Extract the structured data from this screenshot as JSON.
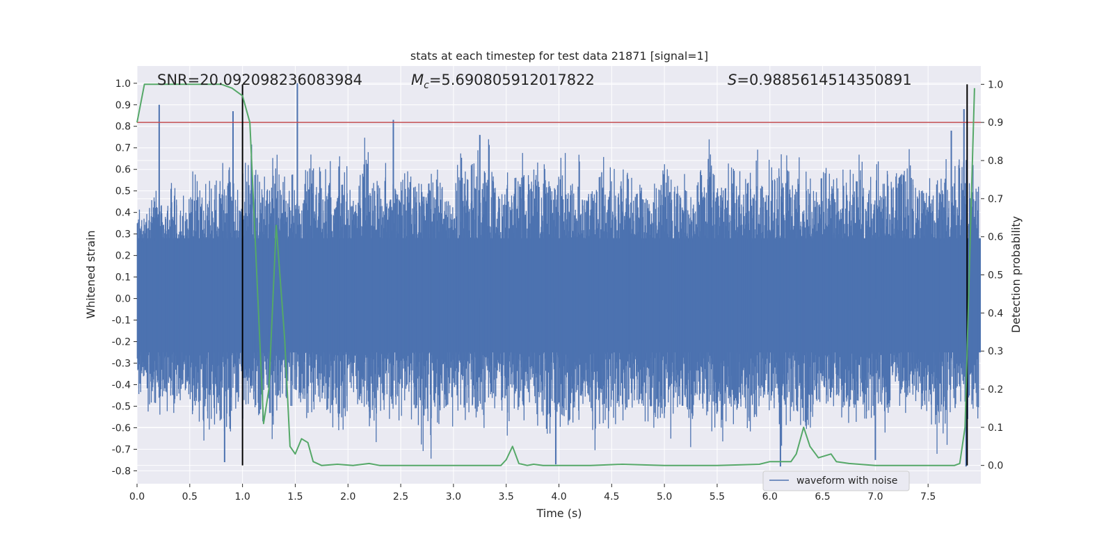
{
  "chart_data": {
    "type": "line",
    "title": "stats at each timestep for test data 21871 [signal=1]",
    "xlabel": "Time (s)",
    "ylabel_left": "Whitened strain",
    "ylabel_right": "Detection probability",
    "xlim": [
      0.0,
      8.0
    ],
    "ylim_left": [
      -0.86,
      1.08
    ],
    "ylim_right": [
      -0.048,
      1.048
    ],
    "x_ticks": [
      "0.0",
      "0.5",
      "1.0",
      "1.5",
      "2.0",
      "2.5",
      "3.0",
      "3.5",
      "4.0",
      "4.5",
      "5.0",
      "5.5",
      "6.0",
      "6.5",
      "7.0",
      "7.5"
    ],
    "y_ticks_left": [
      "-0.8",
      "-0.7",
      "-0.6",
      "-0.5",
      "-0.4",
      "-0.3",
      "-0.2",
      "-0.1",
      "0.0",
      "0.1",
      "0.2",
      "0.3",
      "0.4",
      "0.5",
      "0.6",
      "0.7",
      "0.8",
      "0.9",
      "1.0"
    ],
    "y_ticks_right": [
      "0.0",
      "0.1",
      "0.2",
      "0.3",
      "0.4",
      "0.5",
      "0.6",
      "0.7",
      "0.8",
      "0.9",
      "1.0"
    ],
    "grid": true,
    "annotations": {
      "snr": "SNR=20.092098236083984",
      "mc_symbol": "M",
      "mc_sub": "c",
      "mc_value": "=5.690805912017822",
      "s_symbol": "S",
      "s_value": "=0.9885614514350891"
    },
    "legend": {
      "placement": "bottom-right",
      "entries": [
        "waveform with noise"
      ]
    },
    "series": [
      {
        "name": "waveform with noise",
        "axis": "left",
        "color": "#4c72b0",
        "envelope_upper": [
          0.42,
          0.55,
          0.5,
          0.58,
          0.48,
          0.6,
          0.55,
          0.62,
          0.64,
          0.56,
          0.72,
          0.6,
          0.68,
          0.7,
          0.58,
          0.55,
          0.72,
          0.62,
          0.65,
          0.7,
          0.52,
          0.83,
          0.62,
          0.65,
          0.58,
          0.6,
          0.62,
          0.7,
          0.66,
          0.52,
          0.68,
          0.65,
          0.72,
          0.76,
          0.58,
          0.6,
          0.7,
          0.62,
          0.72,
          0.64,
          0.7,
          0.58,
          0.68,
          0.6,
          0.7,
          0.64,
          0.72,
          0.62,
          0.55,
          0.66,
          0.7,
          0.6,
          0.58,
          0.72,
          0.74,
          0.62,
          0.66,
          0.6,
          0.7,
          0.62,
          0.66,
          0.72,
          0.68,
          0.6,
          0.58,
          0.7,
          0.66,
          0.62,
          0.72,
          0.6,
          0.66,
          0.64,
          0.7,
          0.72,
          0.6,
          0.58,
          0.66,
          0.62,
          0.78,
          0.66
        ],
        "envelope_lower": [
          -0.45,
          -0.6,
          -0.55,
          -0.62,
          -0.5,
          -0.58,
          -0.72,
          -0.6,
          -0.75,
          -0.52,
          -0.58,
          -0.66,
          -0.68,
          -0.55,
          -0.6,
          -0.58,
          -0.64,
          -0.55,
          -0.62,
          -0.66,
          -0.5,
          -0.6,
          -0.72,
          -0.58,
          -0.62,
          -0.55,
          -0.6,
          -0.76,
          -0.6,
          -0.64,
          -0.58,
          -0.62,
          -0.66,
          -0.6,
          -0.58,
          -0.64,
          -0.6,
          -0.55,
          -0.72,
          -0.64,
          -0.66,
          -0.6,
          -0.58,
          -0.74,
          -0.62,
          -0.6,
          -0.64,
          -0.58,
          -0.6,
          -0.72,
          -0.66,
          -0.6,
          -0.7,
          -0.58,
          -0.64,
          -0.72,
          -0.6,
          -0.62,
          -0.66,
          -0.55,
          -0.6,
          -0.7,
          -0.62,
          -0.74,
          -0.6,
          -0.58,
          -0.62,
          -0.66,
          -0.6,
          -0.7,
          -0.58,
          -0.64,
          -0.6,
          -0.55,
          -0.62,
          -0.66,
          -0.76,
          -0.6,
          -0.58,
          -0.62
        ],
        "spikes": [
          [
            0.21,
            0.9
          ],
          [
            0.91,
            0.87
          ],
          [
            1.52,
            1.0
          ],
          [
            2.43,
            0.83
          ],
          [
            3.25,
            0.76
          ],
          [
            6.1,
            -0.78
          ],
          [
            7.72,
            0.78
          ],
          [
            7.84,
            0.88
          ],
          [
            7.86,
            -0.78
          ],
          [
            3.97,
            -0.77
          ],
          [
            7.0,
            -0.75
          ],
          [
            0.83,
            -0.76
          ]
        ]
      },
      {
        "name": "",
        "axis": "right",
        "color": "#55a868",
        "x": [
          0.0,
          0.07,
          0.13,
          0.3,
          0.5,
          0.7,
          0.8,
          0.9,
          0.95,
          1.0,
          1.07,
          1.2,
          1.25,
          1.32,
          1.4,
          1.45,
          1.5,
          1.56,
          1.62,
          1.67,
          1.75,
          1.9,
          2.05,
          2.2,
          2.3,
          2.5,
          2.8,
          3.2,
          3.45,
          3.5,
          3.56,
          3.62,
          3.7,
          3.76,
          3.85,
          4.0,
          4.3,
          4.6,
          5.0,
          5.5,
          5.9,
          6.0,
          6.07,
          6.2,
          6.25,
          6.32,
          6.38,
          6.46,
          6.58,
          6.63,
          6.75,
          7.0,
          7.5,
          7.75,
          7.8,
          7.85,
          7.9,
          7.94
        ],
        "y": [
          0.9,
          1.0,
          1.0,
          1.0,
          1.0,
          1.0,
          1.0,
          0.99,
          0.98,
          0.97,
          0.9,
          0.11,
          0.2,
          0.63,
          0.33,
          0.05,
          0.03,
          0.07,
          0.06,
          0.01,
          0.0,
          0.003,
          0.0,
          0.005,
          0.0,
          0.0,
          0.0,
          0.0,
          0.0,
          0.015,
          0.05,
          0.005,
          0.0,
          0.003,
          0.0,
          0.0,
          0.0,
          0.003,
          0.0,
          0.0,
          0.003,
          0.01,
          0.01,
          0.01,
          0.03,
          0.1,
          0.05,
          0.02,
          0.03,
          0.01,
          0.005,
          0.0,
          0.0,
          0.0,
          0.005,
          0.1,
          0.6,
          0.99
        ]
      }
    ],
    "hlines": [
      {
        "axis": "right",
        "y": 0.9,
        "color": "#c44e52"
      }
    ],
    "vlines": [
      {
        "x": 1.0,
        "color": "#000000"
      },
      {
        "x": 7.87,
        "color": "#000000"
      }
    ]
  }
}
